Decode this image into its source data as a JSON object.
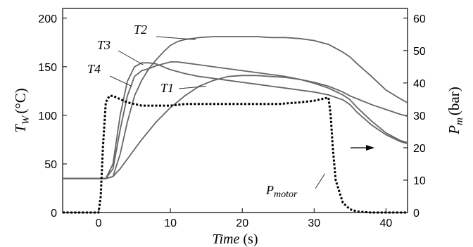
{
  "chart_data": {
    "type": "line",
    "xlabel": "Time",
    "xlabel_unit": "(s)",
    "ylabel_left": {
      "main": "T",
      "sub": "W",
      "unit": "(°C)"
    },
    "ylabel_right": {
      "main": "P",
      "sub": "m",
      "unit": "(bar)"
    },
    "xlim": [
      -5,
      43
    ],
    "ylim_left": [
      0,
      210
    ],
    "ylim_right": [
      0,
      63
    ],
    "x_ticks": [
      0,
      10,
      20,
      30,
      40
    ],
    "y_left_ticks": [
      0,
      50,
      100,
      150,
      200
    ],
    "y_right_ticks": [
      0,
      10,
      20,
      30,
      40,
      50,
      60
    ],
    "grid": false,
    "colors": {
      "temperature": "#666666",
      "pressure": "#000000"
    },
    "series": [
      {
        "name": "T2",
        "axis": "left",
        "style": "solid",
        "x": [
          -5,
          0,
          1,
          2,
          3,
          4,
          5,
          6,
          7,
          8,
          9,
          10,
          11,
          12,
          14,
          16,
          18,
          20,
          22,
          24,
          26,
          28,
          30,
          32,
          33,
          34,
          35,
          36,
          38,
          40,
          42,
          43
        ],
        "y": [
          35,
          35,
          35,
          37,
          60,
          93,
          120,
          136,
          148,
          157,
          165,
          172,
          176,
          178,
          180,
          181,
          181,
          181,
          181,
          180,
          180,
          179,
          177,
          173,
          169,
          165,
          160,
          153,
          140,
          126,
          117,
          113
        ]
      },
      {
        "name": "T3",
        "axis": "left",
        "style": "solid",
        "x": [
          -5,
          0,
          1,
          2,
          3,
          4,
          5,
          6,
          7,
          8,
          9,
          10,
          12,
          14,
          16,
          18,
          20,
          22,
          24,
          26,
          28,
          30,
          32,
          34,
          35,
          36,
          38,
          40,
          42,
          43
        ],
        "y": [
          35,
          35,
          35,
          50,
          100,
          135,
          150,
          154,
          154,
          153,
          150,
          147,
          143,
          140,
          138,
          136,
          134,
          132,
          130,
          128,
          126,
          124,
          121,
          116,
          111,
          103,
          90,
          80,
          73,
          71
        ]
      },
      {
        "name": "T4",
        "axis": "left",
        "style": "solid",
        "x": [
          -5,
          0,
          1,
          2,
          3,
          4,
          5,
          6,
          7,
          8,
          9,
          10,
          11,
          12,
          14,
          16,
          18,
          20,
          22,
          24,
          26,
          28,
          30,
          32,
          34,
          35,
          36,
          38,
          40,
          42,
          43
        ],
        "y": [
          35,
          35,
          35,
          45,
          85,
          120,
          140,
          146,
          148,
          151,
          153,
          155,
          155,
          154,
          152,
          150,
          148,
          146,
          144,
          142,
          140,
          137,
          133,
          128,
          121,
          116,
          108,
          94,
          82,
          74,
          72
        ]
      },
      {
        "name": "T1",
        "axis": "left",
        "style": "solid",
        "x": [
          -5,
          0,
          1,
          2,
          3,
          4,
          6,
          8,
          10,
          12,
          14,
          16,
          18,
          20,
          22,
          24,
          26,
          28,
          30,
          32,
          34,
          35,
          36,
          38,
          40,
          42,
          43
        ],
        "y": [
          35,
          35,
          35,
          37,
          45,
          55,
          75,
          93,
          108,
          120,
          130,
          136,
          140,
          141,
          141,
          140,
          139,
          137,
          134,
          130,
          124,
          120,
          117,
          111,
          106,
          101,
          99
        ]
      },
      {
        "name": "P_motor",
        "axis": "right",
        "style": "dotted",
        "x": [
          -5,
          0,
          0.3,
          0.6,
          1,
          1.5,
          2,
          3,
          4,
          5,
          6,
          8,
          10,
          12,
          15,
          20,
          25,
          28,
          30,
          31,
          32,
          32.3,
          32.6,
          33,
          34,
          35,
          36,
          38,
          40,
          43
        ],
        "y": [
          0,
          0,
          5,
          20,
          34,
          36,
          36,
          35,
          34,
          33.5,
          33,
          33,
          33,
          33.5,
          33.5,
          33.5,
          33.5,
          34,
          34.5,
          35,
          35.5,
          30,
          20,
          10,
          3,
          1,
          0.3,
          0,
          0,
          0
        ]
      }
    ],
    "annotations": [
      {
        "text": "T2",
        "point_x": 13.5,
        "point_y": 178
      },
      {
        "text": "T3",
        "point_x": 6.2,
        "point_y": 152
      },
      {
        "text": "T4",
        "point_x": 4.6,
        "point_y": 130
      },
      {
        "text": "T1",
        "point_x": 15,
        "point_y": 130
      },
      {
        "text": "P",
        "sub": "motor",
        "point_x": 31.5,
        "point_y": 12
      }
    ]
  }
}
